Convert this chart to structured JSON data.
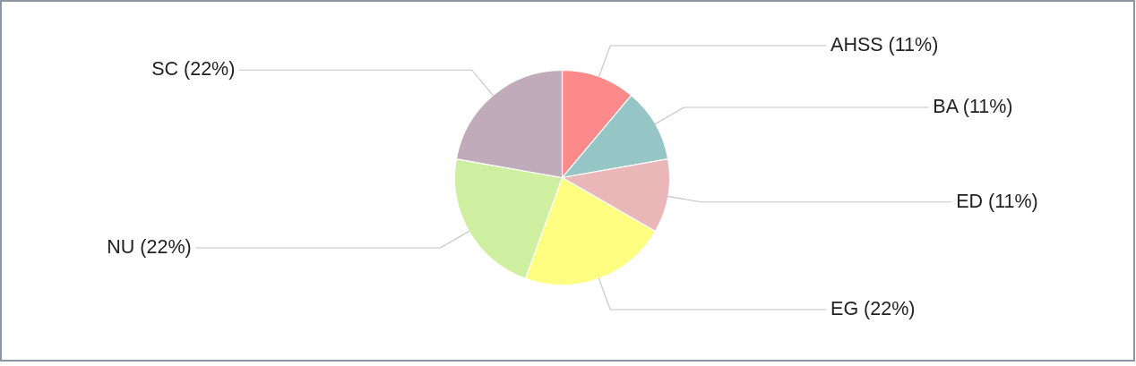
{
  "chart_data": {
    "type": "pie",
    "categories": [
      "AHSS",
      "BA",
      "ED",
      "EG",
      "NU",
      "SC"
    ],
    "values": [
      11,
      11,
      11,
      22,
      22,
      22
    ],
    "colors": [
      "#fc8a8a",
      "#95c5c5",
      "#eab7b9",
      "#fefe80",
      "#cdef9f",
      "#c0acb8"
    ],
    "value_labels": [
      "(11%)",
      "(11%)",
      "(11%)",
      "(22%)",
      "(22%)",
      "(22%)"
    ]
  }
}
